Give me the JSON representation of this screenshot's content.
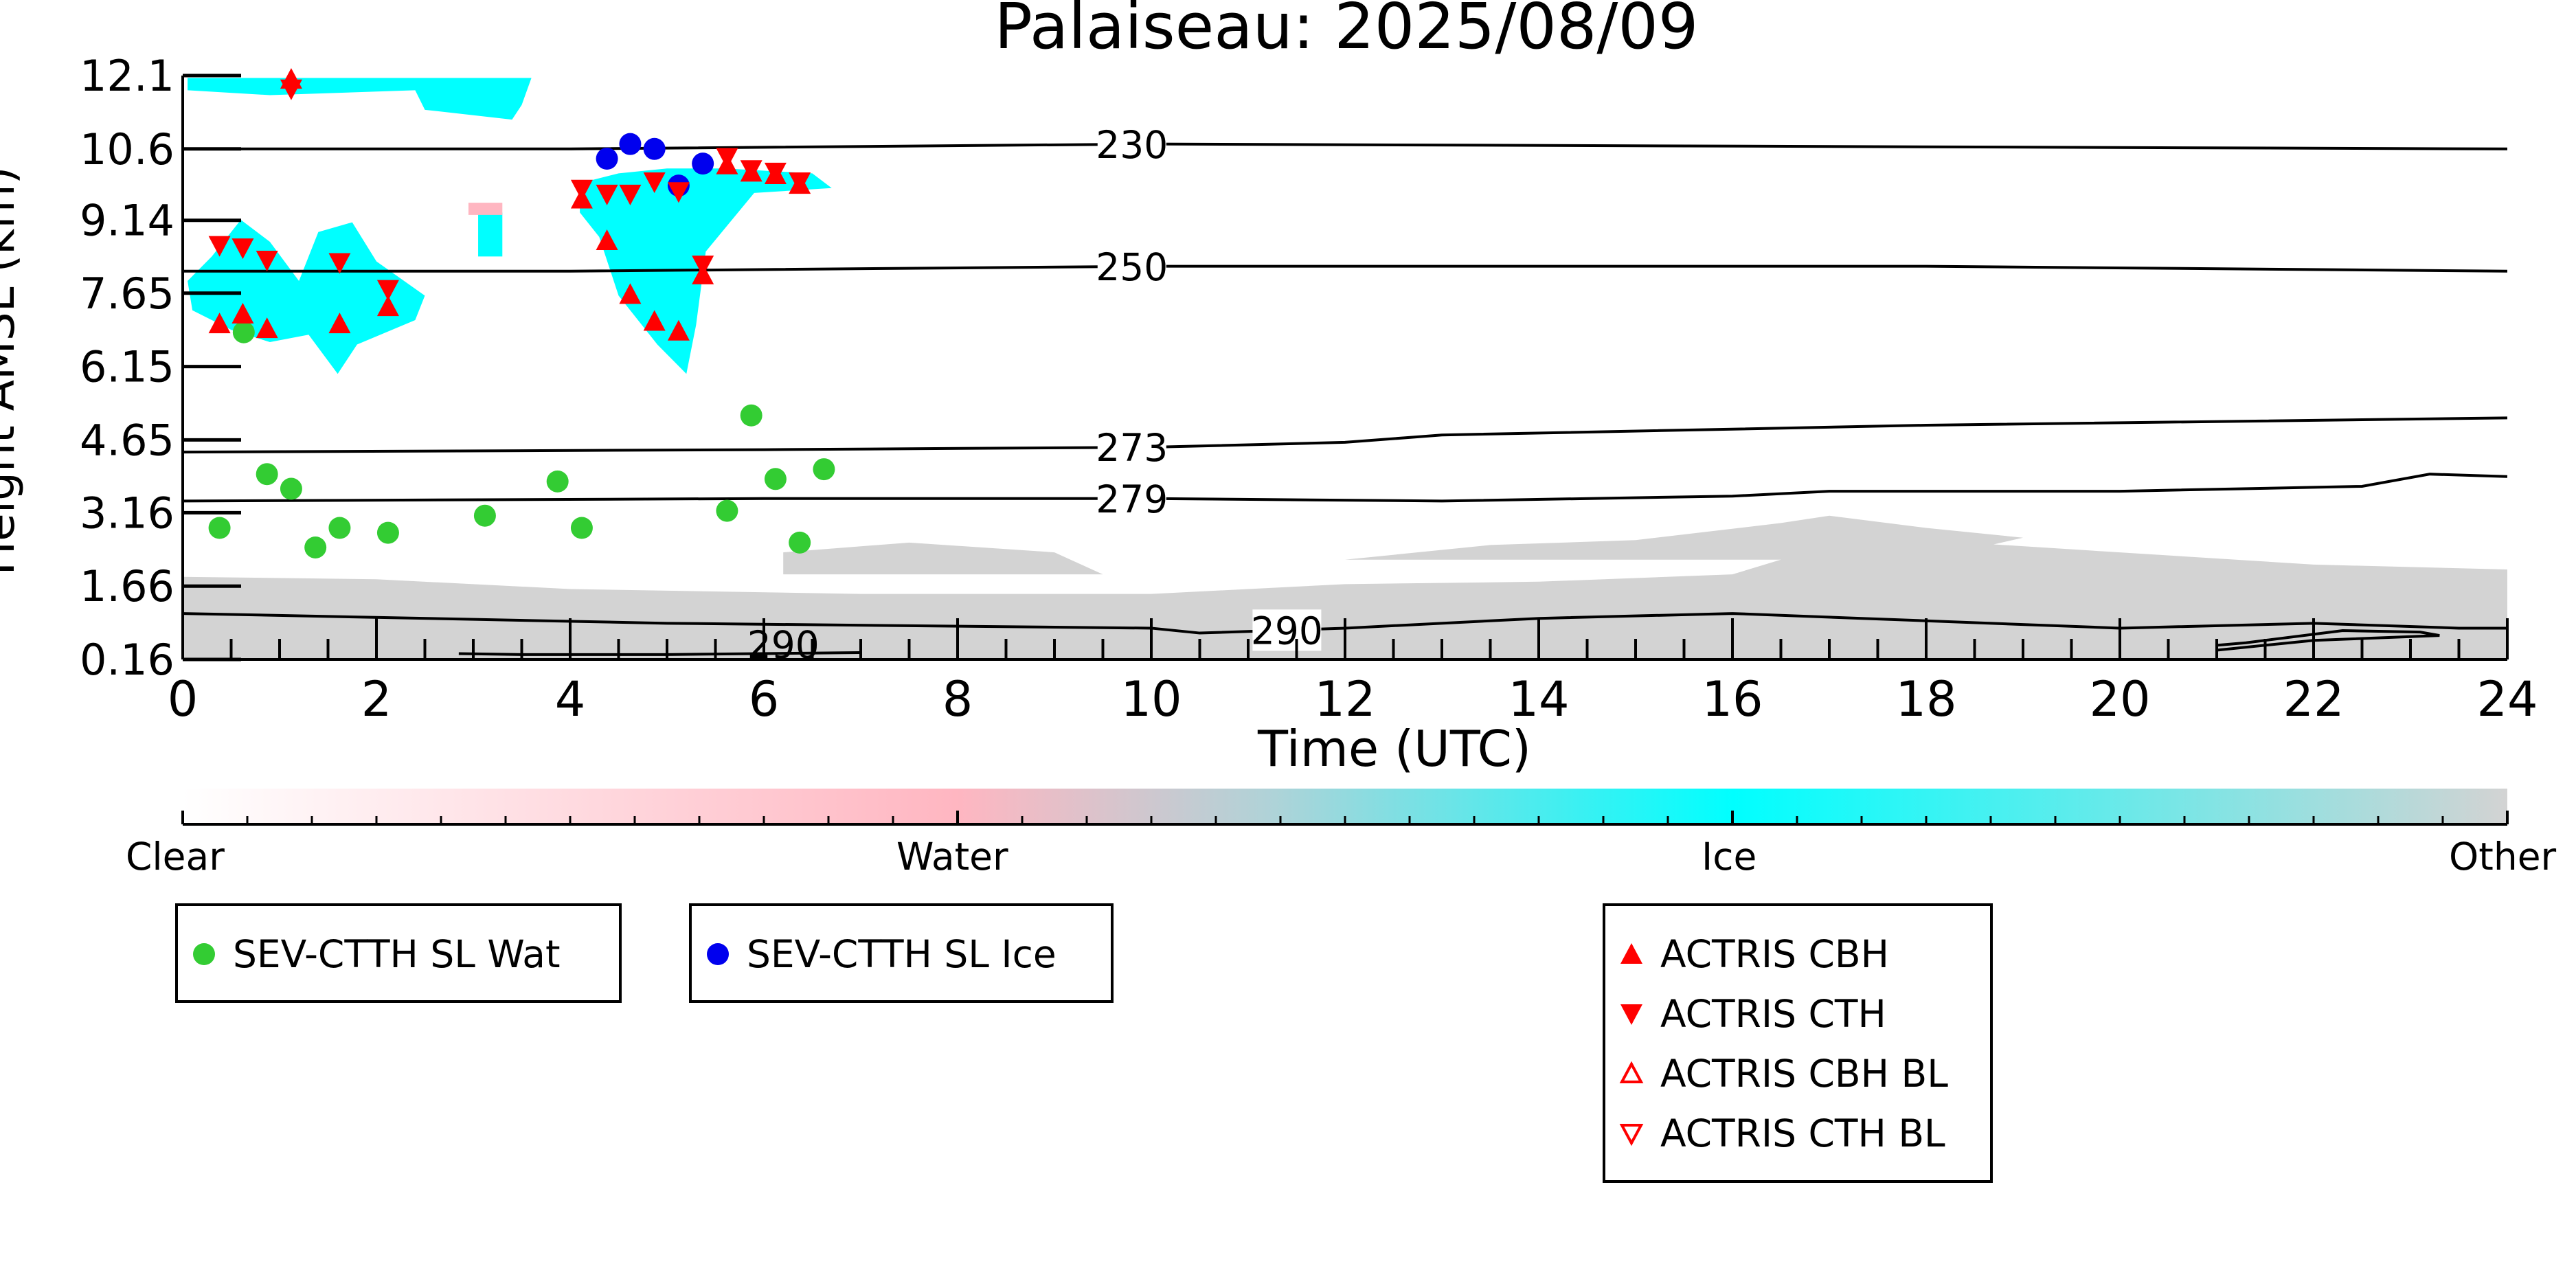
{
  "chart_data": {
    "type": "scatter",
    "title": "Palaiseau: 2025/08/09",
    "xlabel": "Time (UTC)",
    "ylabel": "Height AMSL (km)",
    "xlim": [
      0,
      24
    ],
    "xticks": [
      "0",
      "2",
      "4",
      "6",
      "8",
      "10",
      "12",
      "14",
      "16",
      "18",
      "20",
      "22",
      "24"
    ],
    "yticks": [
      "0.16",
      "1.66",
      "3.16",
      "4.65",
      "6.15",
      "7.65",
      "9.14",
      "10.6",
      "12.1"
    ],
    "ytick_values": [
      0.16,
      1.66,
      3.16,
      4.65,
      6.15,
      7.65,
      9.14,
      10.6,
      12.1
    ],
    "ylim": [
      0.16,
      12.1
    ],
    "colors": {
      "water_pt": "#33cc33",
      "ice_pt": "#0000ee",
      "actris": "#ff0000",
      "ice": "#00ffff",
      "water": "#ffb6c1",
      "other": "#d3d3d3"
    },
    "contours": [
      {
        "label": "230",
        "x": [
          0,
          4,
          10,
          24
        ],
        "y": [
          10.6,
          10.6,
          10.7,
          10.6
        ]
      },
      {
        "label": "250",
        "x": [
          0,
          4,
          10,
          13,
          18,
          24
        ],
        "y": [
          8.1,
          8.1,
          8.2,
          8.2,
          8.2,
          8.1
        ]
      },
      {
        "label": "273",
        "x": [
          0,
          6,
          10,
          12,
          13,
          18,
          24
        ],
        "y": [
          4.4,
          4.45,
          4.5,
          4.6,
          4.75,
          4.95,
          5.1
        ]
      },
      {
        "label": "279",
        "x": [
          0,
          6,
          10,
          13,
          16,
          17,
          20,
          22.5,
          23.2,
          24
        ],
        "y": [
          3.4,
          3.45,
          3.45,
          3.4,
          3.5,
          3.6,
          3.6,
          3.7,
          3.95,
          3.9
        ]
      },
      {
        "label": "290",
        "x": [
          0,
          5,
          10,
          10.5,
          12,
          14,
          16,
          20,
          22,
          23.5,
          24
        ],
        "y": [
          1.1,
          0.9,
          0.8,
          0.7,
          0.8,
          1.0,
          1.1,
          0.8,
          0.9,
          0.8,
          0.8
        ]
      }
    ],
    "contour_label_290b": "290",
    "series": [
      {
        "name": "SEV-CTTH SL Wat",
        "marker": "circle",
        "color": "#33cc33",
        "x": [
          0.38,
          0.63,
          0.87,
          1.12,
          1.37,
          1.62,
          2.12,
          3.12,
          3.87,
          4.12,
          5.62,
          5.87,
          6.12,
          6.37,
          6.62
        ],
        "y": [
          2.85,
          6.85,
          3.95,
          3.65,
          2.45,
          2.85,
          2.75,
          3.1,
          3.8,
          2.85,
          3.2,
          5.15,
          3.85,
          2.55,
          4.05
        ]
      },
      {
        "name": "SEV-CTTH SL Ice",
        "marker": "circle",
        "color": "#0000ee",
        "x": [
          4.38,
          4.62,
          4.87,
          5.37,
          5.12
        ],
        "y": [
          10.4,
          10.7,
          10.6,
          10.3,
          9.85
        ]
      },
      {
        "name": "ACTRIS CBH",
        "marker": "triangle-up",
        "color": "#ff0000",
        "x": [
          0.38,
          0.62,
          0.87,
          1.12,
          1.62,
          2.12,
          4.12,
          4.38,
          4.62,
          4.87,
          5.12,
          5.37,
          5.62,
          5.87,
          6.12,
          6.37
        ],
        "y": [
          7.0,
          7.2,
          6.9,
          12.0,
          7.0,
          7.35,
          9.55,
          8.7,
          7.6,
          7.05,
          6.85,
          8.0,
          10.25,
          10.1,
          10.05,
          9.85
        ]
      },
      {
        "name": "ACTRIS CTH",
        "marker": "triangle-down",
        "color": "#ff0000",
        "x": [
          0.38,
          0.62,
          0.87,
          1.12,
          1.62,
          2.12,
          4.12,
          4.38,
          4.62,
          4.87,
          5.12,
          5.37,
          5.62,
          5.87,
          6.12,
          6.37
        ],
        "y": [
          8.65,
          8.6,
          8.35,
          11.85,
          8.3,
          7.75,
          9.8,
          9.7,
          9.7,
          9.95,
          9.75,
          8.25,
          10.45,
          10.2,
          10.15,
          9.95
        ]
      },
      {
        "name": "ACTRIS CBH BL",
        "marker": "triangle-up-open",
        "color": "#ff0000",
        "x": [],
        "y": []
      },
      {
        "name": "ACTRIS CTH BL",
        "marker": "triangle-down-open",
        "color": "#ff0000",
        "x": [],
        "y": []
      }
    ],
    "colorbar": {
      "labels": [
        "Clear",
        "Water",
        "Ice",
        "Other"
      ]
    }
  },
  "legend1": {
    "label": "SEV-CTTH SL Wat"
  },
  "legend2": {
    "label": "SEV-CTTH SL Ice"
  },
  "legend3": {
    "items": [
      "ACTRIS CBH",
      "ACTRIS CTH",
      "ACTRIS CBH BL",
      "ACTRIS CTH BL"
    ]
  }
}
